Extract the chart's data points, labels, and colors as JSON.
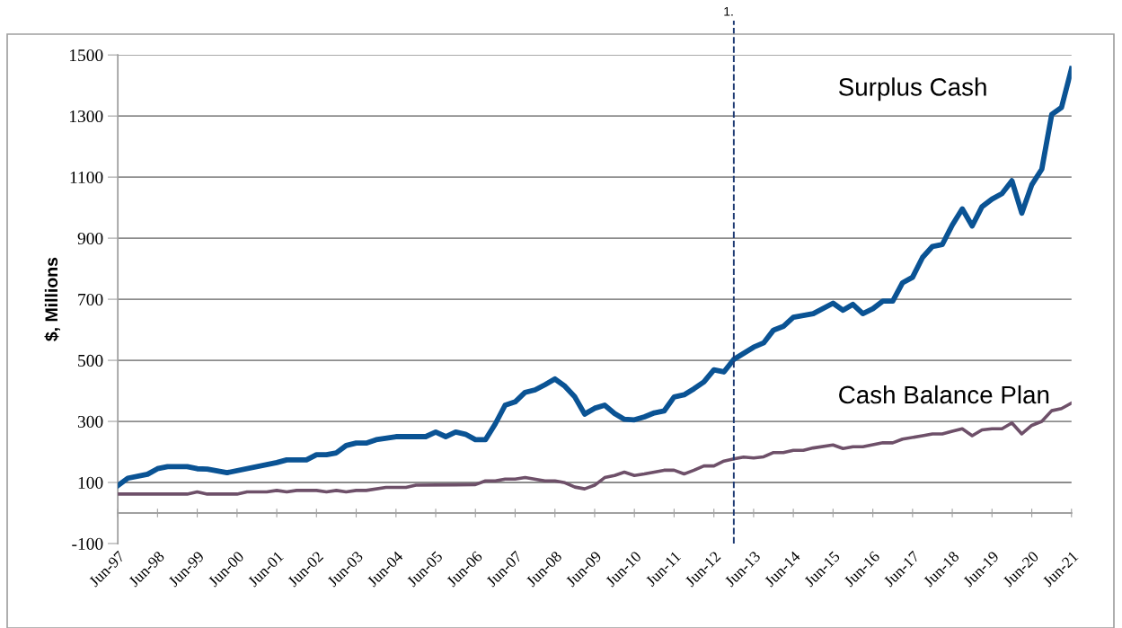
{
  "chart_data": {
    "type": "line",
    "ylabel": "$, Millions",
    "ylim": [
      -100,
      1500
    ],
    "yticks": [
      -100,
      100,
      300,
      500,
      700,
      900,
      1100,
      1300,
      1500
    ],
    "xlim": [
      "1997-06",
      "2021-06"
    ],
    "xticks": [
      {
        "value": "1997-06",
        "label": "Jun-97"
      },
      {
        "value": "1998-06",
        "label": "Jun-98"
      },
      {
        "value": "1999-06",
        "label": "Jun-99"
      },
      {
        "value": "2000-06",
        "label": "Jun-00"
      },
      {
        "value": "2001-06",
        "label": "Jun-01"
      },
      {
        "value": "2002-06",
        "label": "Jun-02"
      },
      {
        "value": "2003-06",
        "label": "Jun-03"
      },
      {
        "value": "2004-06",
        "label": "Jun-04"
      },
      {
        "value": "2005-06",
        "label": "Jun-05"
      },
      {
        "value": "2006-06",
        "label": "Jun-06"
      },
      {
        "value": "2007-06",
        "label": "Jun-07"
      },
      {
        "value": "2008-06",
        "label": "Jun-08"
      },
      {
        "value": "2009-06",
        "label": "Jun-09"
      },
      {
        "value": "2010-06",
        "label": "Jun-10"
      },
      {
        "value": "2011-06",
        "label": "Jun-11"
      },
      {
        "value": "2012-06",
        "label": "Jun-12"
      },
      {
        "value": "2013-06",
        "label": "Jun-13"
      },
      {
        "value": "2014-06",
        "label": "Jun-14"
      },
      {
        "value": "2015-06",
        "label": "Jun-15"
      },
      {
        "value": "2016-06",
        "label": "Jun-16"
      },
      {
        "value": "2017-06",
        "label": "Jun-17"
      },
      {
        "value": "2018-06",
        "label": "Jun-18"
      },
      {
        "value": "2019-06",
        "label": "Jun-19"
      },
      {
        "value": "2020-06",
        "label": "Jun-20"
      },
      {
        "value": "2021-06",
        "label": "Jun-21"
      }
    ],
    "grid": "y",
    "legend": false,
    "marker": "none",
    "line_style": "solid",
    "ref_lines": [
      {
        "axis": "x",
        "value": "2012-12",
        "label": "1.",
        "color": "#1f3b73",
        "line_style": "dashed"
      }
    ],
    "series": [
      {
        "name": "Surplus Cash",
        "color": "#0a5394",
        "x": [
          "1997-06",
          "1997-09",
          "1998-03",
          "1998-06",
          "1998-09",
          "1999-03",
          "1999-06",
          "1999-09",
          "2000-03",
          "2001-06",
          "2001-09",
          "2002-03",
          "2002-06",
          "2002-09",
          "2002-12",
          "2003-03",
          "2003-06",
          "2003-09",
          "2003-12",
          "2004-06",
          "2005-03",
          "2005-06",
          "2005-09",
          "2005-12",
          "2006-03",
          "2006-06",
          "2006-09",
          "2006-12",
          "2007-03",
          "2007-06",
          "2007-09",
          "2007-12",
          "2008-03",
          "2008-06",
          "2008-09",
          "2008-12",
          "2009-03",
          "2009-06",
          "2009-09",
          "2009-12",
          "2010-03",
          "2010-06",
          "2010-09",
          "2010-12",
          "2011-03",
          "2011-06",
          "2011-09",
          "2011-12",
          "2012-03",
          "2012-06",
          "2012-09",
          "2012-12",
          "2013-06",
          "2013-09",
          "2013-12",
          "2014-03",
          "2014-06",
          "2014-09",
          "2014-12",
          "2015-06",
          "2015-09",
          "2015-12",
          "2016-03",
          "2016-06",
          "2016-09",
          "2016-12",
          "2017-03",
          "2017-06",
          "2017-09",
          "2017-12",
          "2018-03",
          "2018-06",
          "2018-09",
          "2018-12",
          "2019-03",
          "2019-06",
          "2019-09",
          "2019-12",
          "2020-03",
          "2020-06",
          "2020-09",
          "2020-12",
          "2021-03",
          "2021-06"
        ],
        "values": [
          90,
          114,
          127,
          145,
          152,
          152,
          145,
          144,
          132,
          165,
          174,
          174,
          191,
          191,
          197,
          221,
          229,
          229,
          240,
          250,
          250,
          265,
          250,
          265,
          258,
          240,
          240,
          292,
          353,
          364,
          395,
          403,
          420,
          439,
          415,
          380,
          324,
          343,
          353,
          326,
          307,
          305,
          315,
          328,
          334,
          380,
          387,
          407,
          429,
          469,
          462,
          503,
          543,
          557,
          599,
          611,
          641,
          647,
          653,
          687,
          664,
          683,
          653,
          669,
          694,
          694,
          754,
          772,
          837,
          873,
          879,
          943,
          996,
          940,
          1003,
          1028,
          1046,
          1088,
          982,
          1075,
          1126,
          1305,
          1328,
          1455
        ]
      },
      {
        "name": "Cash Balance Plan",
        "color": "#6e5069",
        "x": [
          "1997-06",
          "1999-03",
          "1999-06",
          "1999-09",
          "2000-06",
          "2000-09",
          "2001-03",
          "2001-06",
          "2001-09",
          "2001-12",
          "2002-06",
          "2002-09",
          "2002-12",
          "2003-03",
          "2003-06",
          "2003-09",
          "2004-03",
          "2004-09",
          "2004-12",
          "2006-06",
          "2006-09",
          "2006-12",
          "2007-03",
          "2007-06",
          "2007-09",
          "2008-03",
          "2008-06",
          "2008-09",
          "2008-12",
          "2009-03",
          "2009-06",
          "2009-09",
          "2009-12",
          "2010-03",
          "2010-06",
          "2010-09",
          "2010-12",
          "2011-03",
          "2011-06",
          "2011-09",
          "2011-12",
          "2012-03",
          "2012-06",
          "2012-09",
          "2012-12",
          "2013-03",
          "2013-06",
          "2013-09",
          "2013-12",
          "2014-03",
          "2014-06",
          "2014-09",
          "2014-12",
          "2015-06",
          "2015-09",
          "2015-12",
          "2016-03",
          "2016-09",
          "2016-12",
          "2017-03",
          "2017-09",
          "2017-12",
          "2018-03",
          "2018-06",
          "2018-09",
          "2018-12",
          "2019-03",
          "2019-06",
          "2019-09",
          "2019-12",
          "2020-03",
          "2020-06",
          "2020-09",
          "2020-12",
          "2021-03",
          "2021-06"
        ],
        "values": [
          62,
          62,
          69,
          62,
          62,
          69,
          69,
          74,
          69,
          74,
          74,
          69,
          74,
          69,
          74,
          74,
          84,
          84,
          91,
          93,
          105,
          105,
          111,
          111,
          116,
          105,
          105,
          99,
          85,
          79,
          91,
          116,
          123,
          134,
          123,
          128,
          134,
          140,
          140,
          128,
          140,
          154,
          154,
          170,
          177,
          183,
          180,
          184,
          198,
          198,
          205,
          205,
          213,
          223,
          211,
          217,
          217,
          230,
          230,
          242,
          253,
          259,
          259,
          268,
          276,
          253,
          272,
          276,
          276,
          295,
          259,
          287,
          300,
          335,
          342,
          360
        ]
      }
    ]
  }
}
